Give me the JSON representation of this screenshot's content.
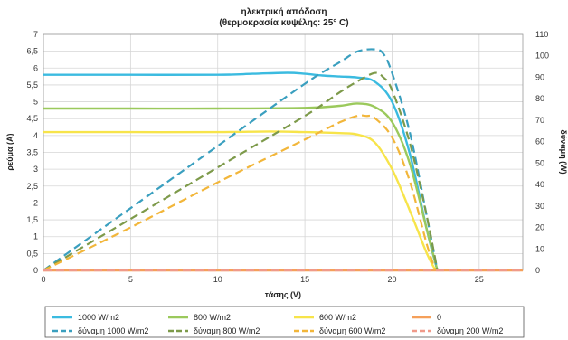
{
  "chart_data": {
    "type": "line",
    "title": "ηλεκτρική απόδοση",
    "subtitle": "(θερμοκρασία κυψέλης: 25° C)",
    "xlabel": "τάσης (V)",
    "ylabel_left": "ρεύμα (A)",
    "ylabel_right": "δύναμη (W)",
    "xlim": [
      0,
      27.5
    ],
    "ylim_left": [
      0,
      7
    ],
    "ylim_right": [
      0,
      110
    ],
    "x_ticks": [
      0,
      5,
      10,
      15,
      20,
      25
    ],
    "y_left_ticks": [
      0,
      0.5,
      1,
      1.5,
      2,
      2.5,
      3,
      3.5,
      4,
      4.5,
      5,
      5.5,
      6,
      6.5,
      7
    ],
    "y_right_ticks": [
      0,
      10,
      20,
      30,
      40,
      50,
      60,
      70,
      80,
      90,
      100,
      110
    ],
    "grid": true,
    "legend_position": "bottom",
    "series": [
      {
        "name": "1000 W/m2",
        "axis": "left",
        "style": "solid",
        "color": "#3bbbe0",
        "x": [
          0,
          5,
          10,
          12,
          14,
          15,
          16,
          17,
          18,
          19,
          20,
          21,
          22,
          22.6
        ],
        "y": [
          5.8,
          5.8,
          5.8,
          5.83,
          5.86,
          5.83,
          5.78,
          5.75,
          5.72,
          5.6,
          5.0,
          3.5,
          1.2,
          0
        ]
      },
      {
        "name": "800 W/m2",
        "axis": "left",
        "style": "solid",
        "color": "#9bc95c",
        "x": [
          0,
          5,
          10,
          15,
          17,
          18,
          19,
          20,
          21,
          22,
          22.6
        ],
        "y": [
          4.8,
          4.8,
          4.8,
          4.82,
          4.88,
          4.95,
          4.85,
          4.4,
          3.2,
          1.2,
          0
        ]
      },
      {
        "name": "600 W/m2",
        "axis": "left",
        "style": "solid",
        "color": "#f7e44a",
        "x": [
          0,
          5,
          10,
          13,
          15,
          17,
          18,
          19,
          20,
          21,
          22,
          22.5
        ],
        "y": [
          4.1,
          4.1,
          4.1,
          4.12,
          4.1,
          4.07,
          4.03,
          3.8,
          3.0,
          1.8,
          0.5,
          0
        ]
      },
      {
        "name": "0",
        "axis": "left",
        "style": "solid",
        "color": "#f5a05a",
        "x": [
          0,
          27.5
        ],
        "y": [
          0,
          0
        ]
      },
      {
        "name": "δύναμη 1000 W/m2",
        "axis": "right",
        "style": "dashed",
        "color": "#3a9fbf",
        "x": [
          0,
          5,
          10,
          15,
          17,
          18,
          19,
          19.5,
          20,
          21,
          22,
          22.6
        ],
        "y": [
          0,
          29,
          58,
          87,
          97,
          102,
          103,
          101,
          92,
          65,
          25,
          0
        ]
      },
      {
        "name": "δύναμη 800 W/m2",
        "axis": "right",
        "style": "dashed",
        "color": "#7d9a4a",
        "x": [
          0,
          5,
          10,
          15,
          17,
          18,
          19,
          19.5,
          20,
          21,
          22,
          22.6
        ],
        "y": [
          0,
          24,
          48,
          72,
          83,
          88,
          92,
          90,
          84,
          60,
          25,
          0
        ]
      },
      {
        "name": "δύναμη 600 W/m2",
        "axis": "right",
        "style": "dashed",
        "color": "#f2b63a",
        "x": [
          0,
          5,
          10,
          15,
          17,
          18,
          18.5,
          19,
          20,
          21,
          22,
          22.5
        ],
        "y": [
          0,
          20,
          41,
          61,
          69,
          72,
          72,
          71,
          62,
          42,
          12,
          0
        ]
      },
      {
        "name": "δύναμη 200 W/m2",
        "axis": "right",
        "style": "dashed",
        "color": "#f09a8a",
        "x": [
          0,
          27.5
        ],
        "y": [
          0,
          0
        ]
      }
    ]
  }
}
